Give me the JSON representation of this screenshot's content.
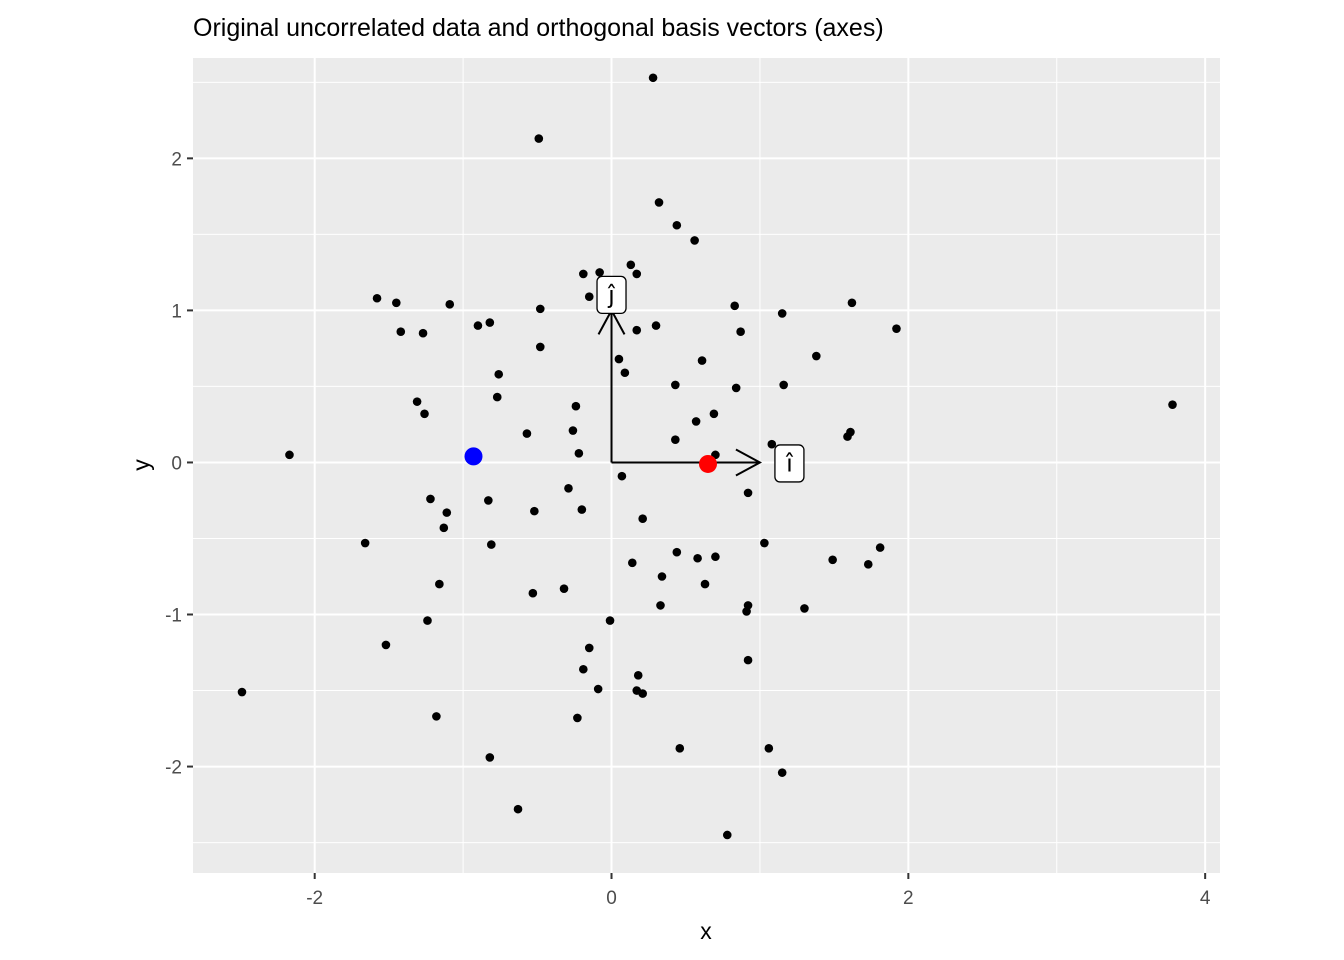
{
  "chart_data": {
    "type": "scatter",
    "title": "Original uncorrelated data and orthogonal basis vectors (axes)",
    "xlabel": "x",
    "ylabel": "y",
    "xlim": [
      -2.82,
      4.1
    ],
    "ylim": [
      -2.7,
      2.66
    ],
    "x_ticks": [
      -2,
      0,
      2,
      4
    ],
    "y_ticks": [
      -2,
      -1,
      0,
      1,
      2
    ],
    "x_tick_labels": [
      "-2",
      "0",
      "2",
      "4"
    ],
    "y_tick_labels": [
      "-2",
      "-1",
      "0",
      "1",
      "2"
    ],
    "grid": true,
    "legend": "none",
    "colors": {
      "panel": "#ebebeb",
      "grid": "#ffffff",
      "points": "#000000",
      "highlight_blue": "#0000ff",
      "highlight_red": "#ff0000",
      "tick_text": "#4d4d4d",
      "tick_mark": "#333333"
    },
    "points": [
      {
        "x": 0.28,
        "y": 2.53
      },
      {
        "x": -0.49,
        "y": 2.13
      },
      {
        "x": 0.32,
        "y": 1.71
      },
      {
        "x": 0.44,
        "y": 1.56
      },
      {
        "x": 0.56,
        "y": 1.46
      },
      {
        "x": 0.13,
        "y": 1.3
      },
      {
        "x": -0.19,
        "y": 1.24
      },
      {
        "x": -0.08,
        "y": 1.25
      },
      {
        "x": 0.17,
        "y": 1.24
      },
      {
        "x": -0.15,
        "y": 1.09
      },
      {
        "x": -1.58,
        "y": 1.08
      },
      {
        "x": -1.45,
        "y": 1.05
      },
      {
        "x": -1.09,
        "y": 1.04
      },
      {
        "x": -0.48,
        "y": 1.01
      },
      {
        "x": 0.83,
        "y": 1.03
      },
      {
        "x": 1.62,
        "y": 1.05
      },
      {
        "x": 1.15,
        "y": 0.98
      },
      {
        "x": -0.82,
        "y": 0.92
      },
      {
        "x": -0.9,
        "y": 0.9
      },
      {
        "x": 0.3,
        "y": 0.9
      },
      {
        "x": 1.92,
        "y": 0.88
      },
      {
        "x": -1.42,
        "y": 0.86
      },
      {
        "x": -1.27,
        "y": 0.85
      },
      {
        "x": 0.17,
        "y": 0.87
      },
      {
        "x": 0.87,
        "y": 0.86
      },
      {
        "x": -0.48,
        "y": 0.76
      },
      {
        "x": 1.38,
        "y": 0.7
      },
      {
        "x": 0.05,
        "y": 0.68
      },
      {
        "x": 0.61,
        "y": 0.67
      },
      {
        "x": 0.09,
        "y": 0.59
      },
      {
        "x": -0.76,
        "y": 0.58
      },
      {
        "x": 0.43,
        "y": 0.51
      },
      {
        "x": 1.16,
        "y": 0.51
      },
      {
        "x": 0.84,
        "y": 0.49
      },
      {
        "x": -0.77,
        "y": 0.43
      },
      {
        "x": -1.31,
        "y": 0.4
      },
      {
        "x": -0.24,
        "y": 0.37
      },
      {
        "x": 3.78,
        "y": 0.38
      },
      {
        "x": -1.26,
        "y": 0.32
      },
      {
        "x": 0.69,
        "y": 0.32
      },
      {
        "x": 0.57,
        "y": 0.27
      },
      {
        "x": -0.26,
        "y": 0.21
      },
      {
        "x": -0.57,
        "y": 0.19
      },
      {
        "x": 1.61,
        "y": 0.2
      },
      {
        "x": 1.59,
        "y": 0.17
      },
      {
        "x": 0.43,
        "y": 0.15
      },
      {
        "x": 1.08,
        "y": 0.12
      },
      {
        "x": -2.17,
        "y": 0.05
      },
      {
        "x": -0.22,
        "y": 0.06
      },
      {
        "x": 0.7,
        "y": 0.05
      },
      {
        "x": 0.07,
        "y": -0.09
      },
      {
        "x": -0.29,
        "y": -0.17
      },
      {
        "x": 0.92,
        "y": -0.2
      },
      {
        "x": -1.22,
        "y": -0.24
      },
      {
        "x": -0.83,
        "y": -0.25
      },
      {
        "x": -1.11,
        "y": -0.33
      },
      {
        "x": -0.52,
        "y": -0.32
      },
      {
        "x": -0.2,
        "y": -0.31
      },
      {
        "x": 0.21,
        "y": -0.37
      },
      {
        "x": -1.13,
        "y": -0.43
      },
      {
        "x": -1.66,
        "y": -0.53
      },
      {
        "x": -0.81,
        "y": -0.54
      },
      {
        "x": 1.03,
        "y": -0.53
      },
      {
        "x": 1.81,
        "y": -0.56
      },
      {
        "x": 0.44,
        "y": -0.59
      },
      {
        "x": 0.58,
        "y": -0.63
      },
      {
        "x": 0.7,
        "y": -0.62
      },
      {
        "x": 1.49,
        "y": -0.64
      },
      {
        "x": 0.14,
        "y": -0.66
      },
      {
        "x": 1.73,
        "y": -0.67
      },
      {
        "x": 0.34,
        "y": -0.75
      },
      {
        "x": -1.16,
        "y": -0.8
      },
      {
        "x": 0.63,
        "y": -0.8
      },
      {
        "x": -0.32,
        "y": -0.83
      },
      {
        "x": -0.53,
        "y": -0.86
      },
      {
        "x": 0.92,
        "y": -0.94
      },
      {
        "x": 0.33,
        "y": -0.94
      },
      {
        "x": 1.3,
        "y": -0.96
      },
      {
        "x": 0.91,
        "y": -0.98
      },
      {
        "x": -1.24,
        "y": -1.04
      },
      {
        "x": -0.01,
        "y": -1.04
      },
      {
        "x": -1.52,
        "y": -1.2
      },
      {
        "x": -0.15,
        "y": -1.22
      },
      {
        "x": 0.92,
        "y": -1.3
      },
      {
        "x": -0.19,
        "y": -1.36
      },
      {
        "x": 0.18,
        "y": -1.4
      },
      {
        "x": -0.09,
        "y": -1.49
      },
      {
        "x": 0.17,
        "y": -1.5
      },
      {
        "x": 0.21,
        "y": -1.52
      },
      {
        "x": -2.49,
        "y": -1.51
      },
      {
        "x": -1.18,
        "y": -1.67
      },
      {
        "x": -0.23,
        "y": -1.68
      },
      {
        "x": 0.46,
        "y": -1.88
      },
      {
        "x": 1.06,
        "y": -1.88
      },
      {
        "x": -0.82,
        "y": -1.94
      },
      {
        "x": 1.15,
        "y": -2.04
      },
      {
        "x": -0.63,
        "y": -2.28
      },
      {
        "x": 0.78,
        "y": -2.45
      }
    ],
    "highlights": [
      {
        "x": -0.93,
        "y": 0.04,
        "color": "#0000ff"
      },
      {
        "x": 0.65,
        "y": -0.01,
        "color": "#ff0000"
      }
    ],
    "vectors": [
      {
        "label": "î",
        "x": 1,
        "y": 0
      },
      {
        "label": "ĵ",
        "x": 0,
        "y": 1
      }
    ]
  }
}
